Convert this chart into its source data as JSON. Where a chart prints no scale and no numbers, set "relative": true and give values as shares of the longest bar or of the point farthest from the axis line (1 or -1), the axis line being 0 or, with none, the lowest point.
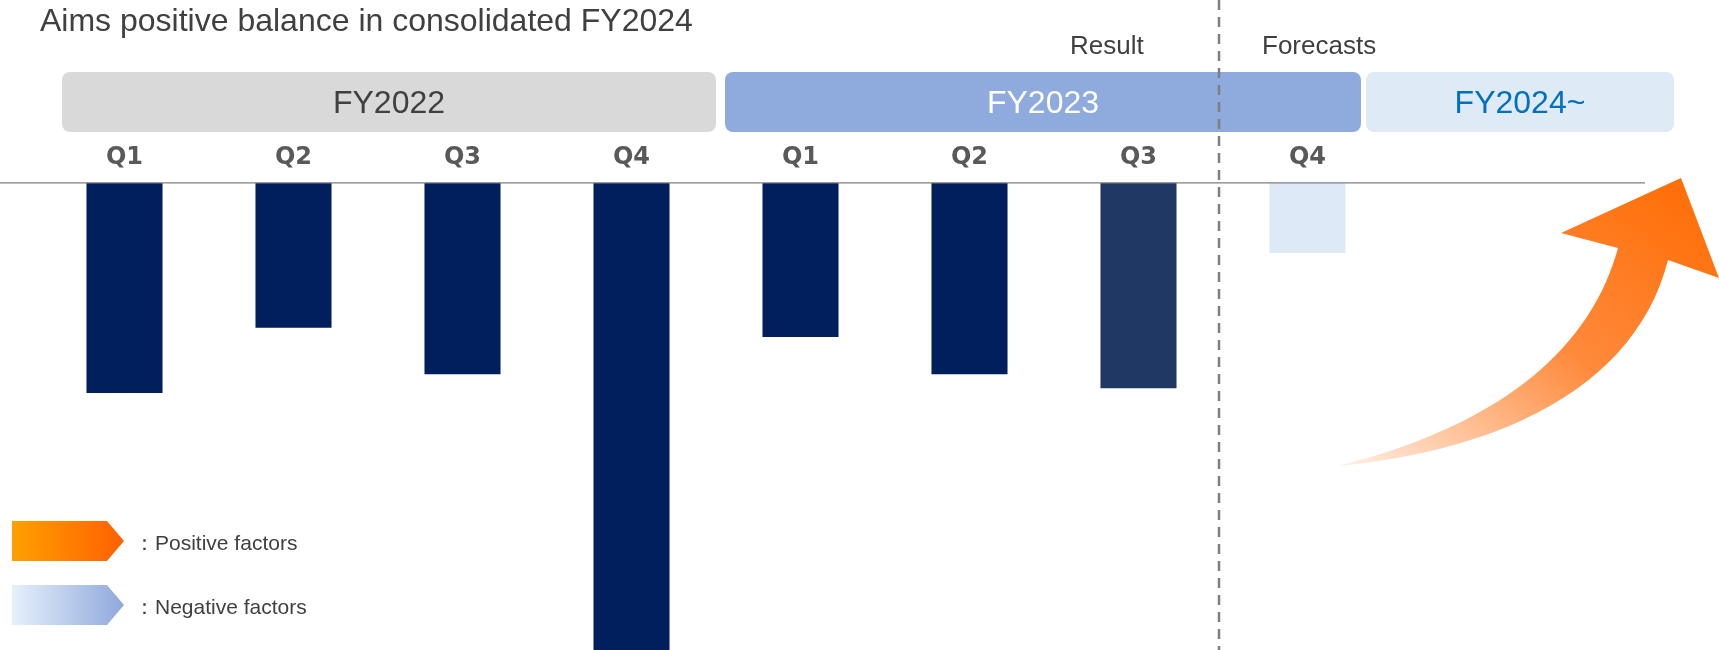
{
  "chart_data": {
    "type": "bar",
    "title": "Aims positive balance in consolidated FY2024",
    "categories": [
      "Q1",
      "Q2",
      "Q3",
      "Q4",
      "Q1",
      "Q2",
      "Q3",
      "Q4"
    ],
    "values": [
      -0.45,
      -0.31,
      -0.41,
      -1,
      -0.33,
      -0.41,
      -0.44,
      -0.15
    ],
    "colors": [
      "#001f5c",
      "#001f5c",
      "#001f5c",
      "#001f5c",
      "#001f5c",
      "#001f5c",
      "#203864",
      "#dde9f6"
    ],
    "relative": true,
    "annotations": [
      "Result",
      "Forecasts",
      "FY2022",
      "FY2023",
      "FY2024~",
      "：Positive factors",
      "：Negative factors"
    ]
  }
}
